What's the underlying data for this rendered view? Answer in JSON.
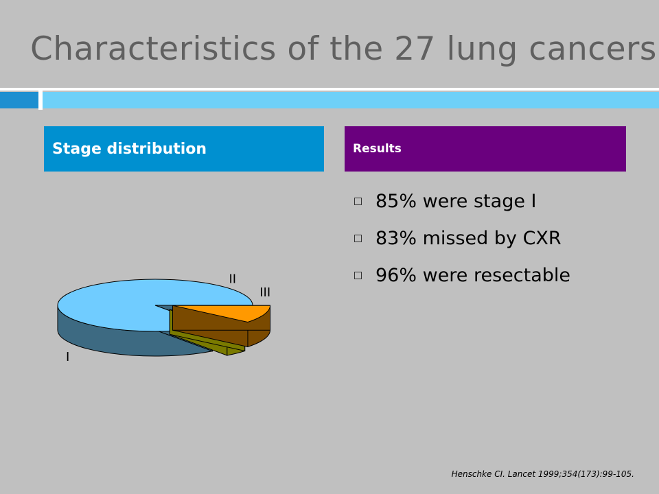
{
  "slide": {
    "title": "Characteristics of the 27 lung cancers",
    "citation": "Henschke CI. Lancet 1999;354(173):99-105."
  },
  "left_panel": {
    "header": "Stage distribution"
  },
  "right_panel": {
    "header": "Results",
    "bullets": [
      "85% were stage I",
      "83% missed by CXR",
      "96% were resectable"
    ]
  },
  "colors": {
    "background": "#c0c0c0",
    "left_header": "#0090d0",
    "right_header": "#6a007e",
    "slice_I": "#70ccff",
    "slice_II": "#ffff33",
    "slice_III": "#ff9900"
  },
  "chart_data": {
    "type": "pie",
    "style": "3d-exploded",
    "title": "",
    "categories": [
      "I",
      "II",
      "III"
    ],
    "values": [
      85,
      4,
      11
    ],
    "colors": [
      "#70ccff",
      "#ffff33",
      "#ff9900"
    ],
    "side_colors": [
      "#3d6a82",
      "#7a7a00",
      "#7a4a00"
    ]
  }
}
